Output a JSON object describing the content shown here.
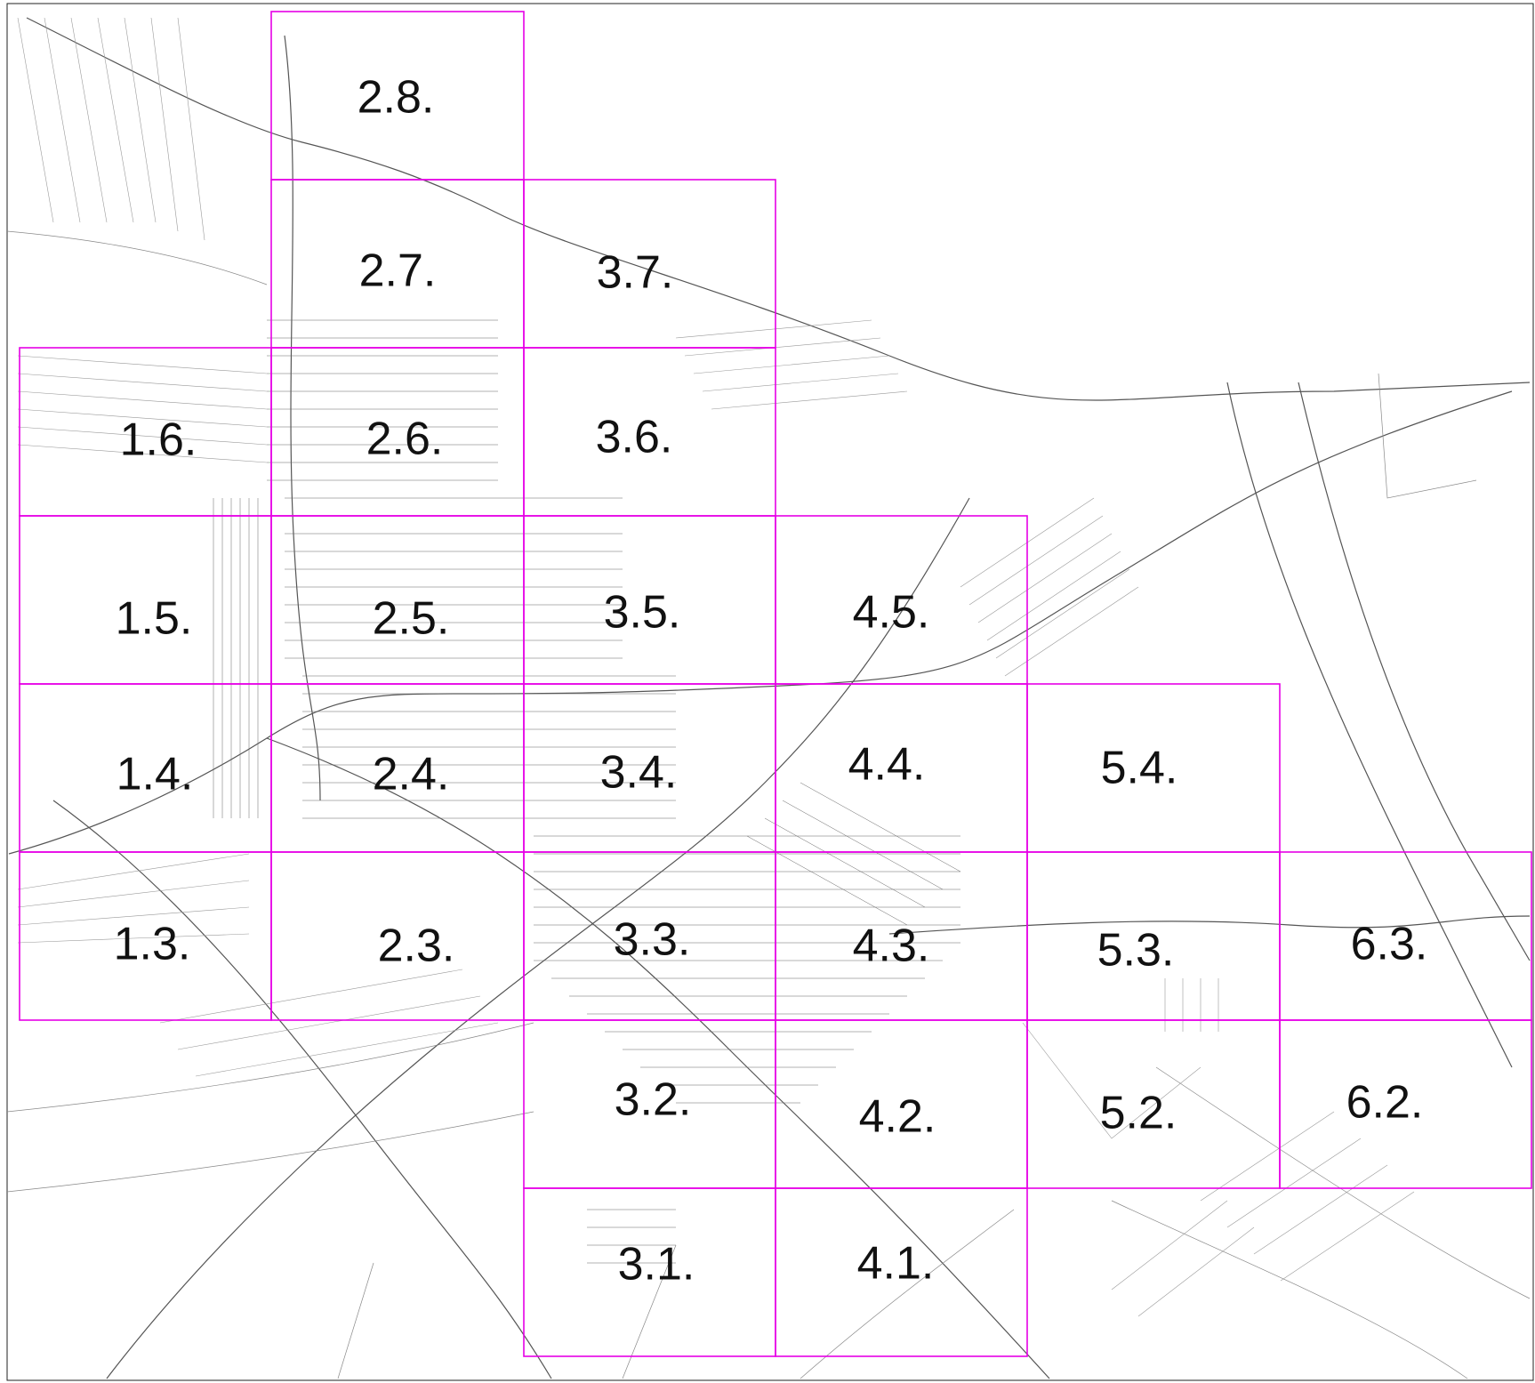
{
  "map": {
    "sheet_color": "#e600e6",
    "sheets": [
      {
        "id": "2.8.",
        "label": "2.8."
      },
      {
        "id": "2.7.",
        "label": "2.7."
      },
      {
        "id": "3.7.",
        "label": "3.7."
      },
      {
        "id": "1.6.",
        "label": "1.6."
      },
      {
        "id": "2.6.",
        "label": "2.6."
      },
      {
        "id": "3.6.",
        "label": "3.6."
      },
      {
        "id": "1.5.",
        "label": "1.5."
      },
      {
        "id": "2.5.",
        "label": "2.5."
      },
      {
        "id": "3.5.",
        "label": "3.5."
      },
      {
        "id": "4.5.",
        "label": "4.5."
      },
      {
        "id": "1.4.",
        "label": "1.4."
      },
      {
        "id": "2.4.",
        "label": "2.4."
      },
      {
        "id": "3.4.",
        "label": "3.4."
      },
      {
        "id": "4.4.",
        "label": "4.4."
      },
      {
        "id": "5.4.",
        "label": "5.4."
      },
      {
        "id": "1.3.",
        "label": "1.3."
      },
      {
        "id": "2.3.",
        "label": "2.3."
      },
      {
        "id": "3.3.",
        "label": "3.3."
      },
      {
        "id": "4.3.",
        "label": "4.3."
      },
      {
        "id": "5.3.",
        "label": "5.3."
      },
      {
        "id": "6.3.",
        "label": "6.3."
      },
      {
        "id": "3.2.",
        "label": "3.2."
      },
      {
        "id": "4.2.",
        "label": "4.2."
      },
      {
        "id": "5.2.",
        "label": "5.2."
      },
      {
        "id": "6.2.",
        "label": "6.2."
      },
      {
        "id": "3.1.",
        "label": "3.1."
      },
      {
        "id": "4.1.",
        "label": "4.1."
      }
    ]
  }
}
